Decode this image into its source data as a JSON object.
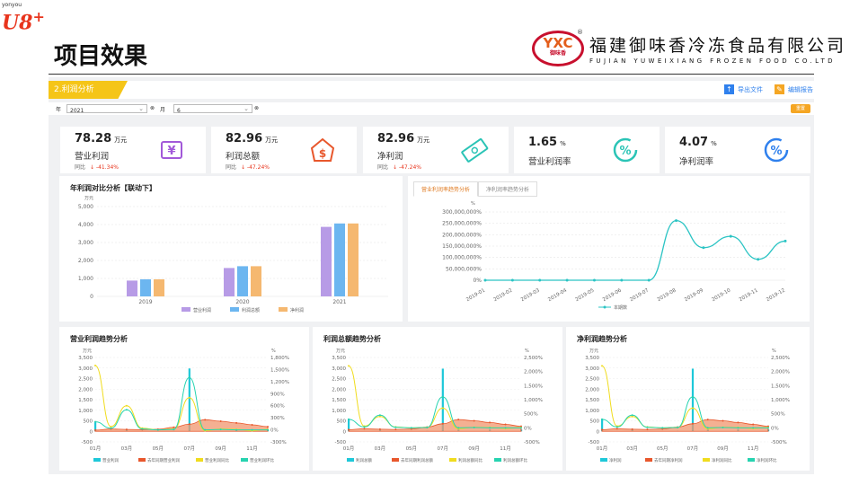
{
  "brand": {
    "small": "yonyou",
    "logo": "U8",
    "plus": "+"
  },
  "page_title": "项目效果",
  "company": {
    "logo_text": "YXC",
    "logo_sub": "御味香",
    "name_cn": "福建御味香冷冻食品有限公司",
    "name_en": "FUJIAN YUWEIXIANG FROZEN FOOD CO.LTD",
    "reg": "®"
  },
  "section": {
    "label": "2.利润分析",
    "export_label": "导出文件",
    "edit_label": "编辑报告"
  },
  "filter": {
    "year_label": "年",
    "year_value": "2021",
    "month_label": "月",
    "month_value": "6",
    "reset_label": "重置"
  },
  "kpis": [
    {
      "value": "78.28",
      "unit": "万元",
      "name": "营业利润",
      "compare_label": "同比",
      "compare_value": "↓ -41.34%",
      "icon": "yen-ticket-icon",
      "color": "#a259d9"
    },
    {
      "value": "82.96",
      "unit": "万元",
      "name": "利润总额",
      "compare_label": "同比",
      "compare_value": "↓ -47.24%",
      "icon": "dollar-house-icon",
      "color": "#e8572c"
    },
    {
      "value": "82.96",
      "unit": "万元",
      "name": "净利润",
      "compare_label": "同比",
      "compare_value": "↓ -47.24%",
      "icon": "money-bill-icon",
      "color": "#2bc4b6"
    },
    {
      "value": "1.65",
      "unit": "%",
      "name": "营业利润率",
      "icon": "percent-cycle-icon",
      "color": "#2bc4b6"
    },
    {
      "value": "4.07",
      "unit": "%",
      "name": "净利润率",
      "icon": "percent-cycle-icon",
      "color": "#2f80ed"
    }
  ],
  "chart_data": [
    {
      "type": "bar",
      "title": "年利润对比分析【联动下】",
      "ylabel": "万元",
      "categories": [
        "2019",
        "2020",
        "2021"
      ],
      "yticks": [
        "0",
        "1,000",
        "2,000",
        "3,000",
        "4,000",
        "5,000"
      ],
      "ylim": [
        0,
        5000
      ],
      "series": [
        {
          "name": "营业利润",
          "color": "#b79be6",
          "values": [
            880,
            1580,
            3870
          ]
        },
        {
          "name": "利润总额",
          "color": "#6cb6f0",
          "values": [
            950,
            1680,
            4060
          ]
        },
        {
          "name": "净利润",
          "color": "#f5b870",
          "values": [
            950,
            1680,
            4060
          ]
        }
      ],
      "legend": "bottom"
    },
    {
      "type": "line",
      "tabs": [
        "营业利润率趋势分析",
        "净利润率趋势分析"
      ],
      "ylabel": "%",
      "categories": [
        "2019-01",
        "2019-02",
        "2019-03",
        "2019-04",
        "2019-05",
        "2019-06",
        "2019-07",
        "2019-08",
        "2019-09",
        "2019-10",
        "2019-11",
        "2019-12"
      ],
      "yticks": [
        "0%",
        "50,000,000%",
        "100,000,000%",
        "150,000,000%",
        "200,000,000%",
        "250,000,000%",
        "300,000,000%"
      ],
      "ylim": [
        0,
        300000000
      ],
      "series": [
        {
          "name": "本期数",
          "color": "#2bc4c4",
          "values": [
            0,
            0,
            0,
            0,
            0,
            0,
            0,
            262000000,
            143000000,
            193000000,
            92000000,
            172000000
          ]
        }
      ],
      "legend": "bottom"
    },
    {
      "type": "line",
      "title": "营业利润趋势分析",
      "ylabel_left": "万元",
      "ylabel_right": "%",
      "xticks": [
        "01月",
        "03月",
        "05月",
        "07月",
        "09月",
        "11月"
      ],
      "yticks_left": [
        "-500",
        "0",
        "500",
        "1,000",
        "1,500",
        "2,000",
        "2,500",
        "3,000",
        "3,500"
      ],
      "yticks_right": [
        "-300%",
        "0%",
        "300%",
        "600%",
        "900%",
        "1,200%",
        "1,500%",
        "1,800%"
      ],
      "ylim_left": [
        -500,
        3500
      ],
      "ylim_right": [
        -300,
        1800
      ],
      "legend_names": [
        "营业利润",
        "去年同期营业利润",
        "营业利润同比",
        "营业利润环比"
      ],
      "series": [
        {
          "name": "营业利润",
          "color": "#1ec8d9",
          "axis": "left",
          "kind": "bar",
          "values": [
            430,
            10,
            100,
            10,
            10,
            20,
            2980,
            90,
            10,
            90,
            10,
            90
          ]
        },
        {
          "name": "去年同期营业利润",
          "color": "#e8572c",
          "axis": "left",
          "kind": "area",
          "values": [
            60,
            110,
            90,
            80,
            100,
            190,
            340,
            550,
            480,
            400,
            310,
            220
          ]
        },
        {
          "name": "营业利润同比",
          "color": "#f0dc1e",
          "axis": "right",
          "values": [
            1600,
            80,
            600,
            40,
            0,
            20,
            800,
            -20,
            20,
            10,
            -20,
            10
          ]
        },
        {
          "name": "营业利润环比",
          "color": "#26d3b0",
          "axis": "right",
          "values": [
            200,
            40,
            500,
            20,
            0,
            10,
            1300,
            0,
            10,
            0,
            0,
            0
          ]
        }
      ]
    },
    {
      "type": "line",
      "title": "利润总额趋势分析",
      "ylabel_left": "万元",
      "ylabel_right": "%",
      "xticks": [
        "01月",
        "03月",
        "05月",
        "07月",
        "09月",
        "11月"
      ],
      "yticks_left": [
        "-500",
        "0",
        "500",
        "1,000",
        "1,500",
        "2,000",
        "2,500",
        "3,000",
        "3,500"
      ],
      "yticks_right": [
        "-500%",
        "0%",
        "500%",
        "1,000%",
        "1,500%",
        "2,000%",
        "2,500%"
      ],
      "ylim_left": [
        -500,
        3500
      ],
      "ylim_right": [
        -500,
        2500
      ],
      "legend_names": [
        "利润总额",
        "去年同期利润总额",
        "利润总额同比",
        "利润总额环比"
      ],
      "series": [
        {
          "name": "利润总额",
          "color": "#1ec8d9",
          "axis": "left",
          "kind": "bar",
          "values": [
            600,
            10,
            100,
            10,
            10,
            20,
            2970,
            90,
            10,
            90,
            10,
            90
          ]
        },
        {
          "name": "去年同期利润总额",
          "color": "#e8572c",
          "axis": "left",
          "kind": "area",
          "values": [
            80,
            120,
            100,
            90,
            110,
            200,
            360,
            560,
            500,
            420,
            330,
            240
          ]
        },
        {
          "name": "利润总额同比",
          "color": "#f0dc1e",
          "axis": "right",
          "values": [
            2200,
            60,
            400,
            30,
            0,
            20,
            700,
            -30,
            20,
            10,
            -20,
            10
          ]
        },
        {
          "name": "利润总额环比",
          "color": "#26d3b0",
          "axis": "right",
          "values": [
            300,
            30,
            450,
            20,
            0,
            10,
            1100,
            0,
            10,
            0,
            0,
            0
          ]
        }
      ]
    },
    {
      "type": "line",
      "title": "净利润趋势分析",
      "ylabel_left": "万元",
      "ylabel_right": "%",
      "xticks": [
        "01月",
        "03月",
        "05月",
        "07月",
        "09月",
        "11月"
      ],
      "yticks_left": [
        "-500",
        "0",
        "500",
        "1,000",
        "1,500",
        "2,000",
        "2,500",
        "3,000",
        "3,500"
      ],
      "yticks_right": [
        "-500%",
        "0%",
        "500%",
        "1,000%",
        "1,500%",
        "2,000%",
        "2,500%"
      ],
      "ylim_left": [
        -500,
        3500
      ],
      "ylim_right": [
        -500,
        2500
      ],
      "legend_names": [
        "净利润",
        "去年同期净利润",
        "净利润同比",
        "净利润环比"
      ],
      "series": [
        {
          "name": "净利润",
          "color": "#1ec8d9",
          "axis": "left",
          "kind": "bar",
          "values": [
            600,
            10,
            100,
            10,
            10,
            20,
            2970,
            90,
            10,
            90,
            10,
            90
          ]
        },
        {
          "name": "去年同期净利润",
          "color": "#e8572c",
          "axis": "left",
          "kind": "area",
          "values": [
            80,
            120,
            100,
            90,
            110,
            200,
            360,
            560,
            500,
            420,
            330,
            240
          ]
        },
        {
          "name": "净利润同比",
          "color": "#f0dc1e",
          "axis": "right",
          "values": [
            2200,
            60,
            400,
            30,
            0,
            20,
            700,
            -30,
            20,
            10,
            -20,
            10
          ]
        },
        {
          "name": "净利润环比",
          "color": "#26d3b0",
          "axis": "right",
          "values": [
            300,
            30,
            450,
            20,
            0,
            10,
            1100,
            0,
            10,
            0,
            0,
            0
          ]
        }
      ]
    }
  ]
}
